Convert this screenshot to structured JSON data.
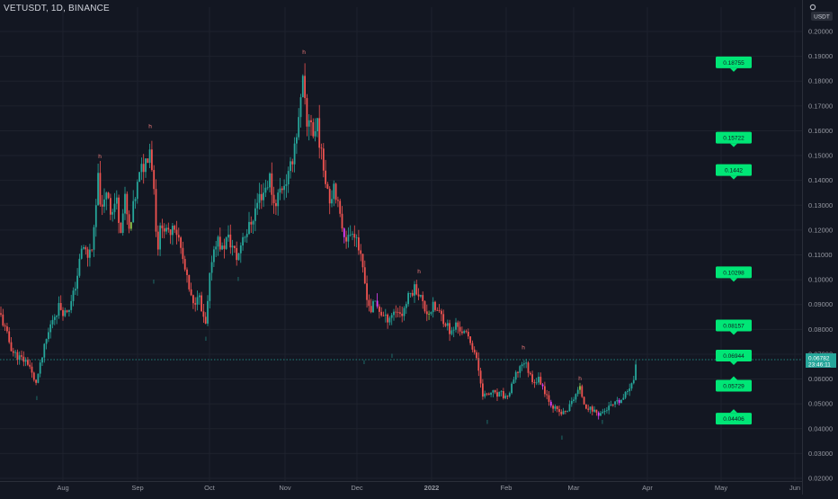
{
  "header": {
    "symbol_title": "VETUSDT, 1D, BINANCE",
    "currency_button": "USDT",
    "settings_icon": "gear-icon"
  },
  "colors": {
    "background": "#131722",
    "grid": "#1e222d",
    "up": "#26a69a",
    "down": "#ef5350",
    "up_highlight": "#8bc34a",
    "down_highlight": "#e040fb",
    "level_box": "#00e676",
    "axis_text": "#9598a1",
    "price_line": "#26a69a"
  },
  "last_price": {
    "value": "0.06782",
    "countdown": "23:46:11"
  },
  "chart_data": {
    "type": "candlestick",
    "title": "VETUSDT, 1D, BINANCE",
    "y_ticks": [
      "0.20000",
      "0.19000",
      "0.18000",
      "0.17000",
      "0.16000",
      "0.15000",
      "0.14000",
      "0.13000",
      "0.12000",
      "0.11000",
      "0.10000",
      "0.09000",
      "0.08000",
      "0.07000",
      "0.06000",
      "0.05000",
      "0.04000",
      "0.03000",
      "0.02000"
    ],
    "x_ticks": [
      "Aug",
      "Sep",
      "Oct",
      "Nov",
      "Dec",
      "2022",
      "Feb",
      "Mar",
      "Apr",
      "May",
      "Jun"
    ],
    "ylim": [
      0.0165,
      0.2035
    ],
    "grid": true,
    "series_path": [
      {
        "x": 0,
        "y": 0.0865
      },
      {
        "x": 6,
        "y": 0.0795
      },
      {
        "x": 14,
        "y": 0.071
      },
      {
        "x": 22,
        "y": 0.0685
      },
      {
        "x": 32,
        "y": 0.0665
      },
      {
        "x": 39,
        "y": 0.0575
      },
      {
        "x": 44,
        "y": 0.064
      },
      {
        "x": 50,
        "y": 0.0735
      },
      {
        "x": 58,
        "y": 0.084
      },
      {
        "x": 66,
        "y": 0.0895
      },
      {
        "x": 72,
        "y": 0.0865
      },
      {
        "x": 80,
        "y": 0.091
      },
      {
        "x": 86,
        "y": 0.102
      },
      {
        "x": 92,
        "y": 0.114
      },
      {
        "x": 98,
        "y": 0.109
      },
      {
        "x": 104,
        "y": 0.116
      },
      {
        "x": 109,
        "y": 0.14
      },
      {
        "x": 114,
        "y": 0.126
      },
      {
        "x": 119,
        "y": 0.138
      },
      {
        "x": 124,
        "y": 0.126
      },
      {
        "x": 129,
        "y": 0.133
      },
      {
        "x": 134,
        "y": 0.121
      },
      {
        "x": 139,
        "y": 0.132
      },
      {
        "x": 144,
        "y": 0.118
      },
      {
        "x": 150,
        "y": 0.133
      },
      {
        "x": 156,
        "y": 0.143
      },
      {
        "x": 162,
        "y": 0.148
      },
      {
        "x": 167,
        "y": 0.154
      },
      {
        "x": 171,
        "y": 0.138
      },
      {
        "x": 175,
        "y": 0.112
      },
      {
        "x": 180,
        "y": 0.124
      },
      {
        "x": 186,
        "y": 0.117
      },
      {
        "x": 193,
        "y": 0.124
      },
      {
        "x": 199,
        "y": 0.116
      },
      {
        "x": 205,
        "y": 0.105
      },
      {
        "x": 210,
        "y": 0.096
      },
      {
        "x": 215,
        "y": 0.089
      },
      {
        "x": 220,
        "y": 0.096
      },
      {
        "x": 225,
        "y": 0.085
      },
      {
        "x": 229,
        "y": 0.081
      },
      {
        "x": 235,
        "y": 0.108
      },
      {
        "x": 241,
        "y": 0.117
      },
      {
        "x": 247,
        "y": 0.112
      },
      {
        "x": 253,
        "y": 0.117
      },
      {
        "x": 259,
        "y": 0.113
      },
      {
        "x": 264,
        "y": 0.108
      },
      {
        "x": 270,
        "y": 0.118
      },
      {
        "x": 276,
        "y": 0.12
      },
      {
        "x": 282,
        "y": 0.126
      },
      {
        "x": 288,
        "y": 0.133
      },
      {
        "x": 294,
        "y": 0.136
      },
      {
        "x": 300,
        "y": 0.141
      },
      {
        "x": 305,
        "y": 0.13
      },
      {
        "x": 310,
        "y": 0.135
      },
      {
        "x": 316,
        "y": 0.139
      },
      {
        "x": 322,
        "y": 0.142
      },
      {
        "x": 328,
        "y": 0.156
      },
      {
        "x": 333,
        "y": 0.165
      },
      {
        "x": 337,
        "y": 0.18
      },
      {
        "x": 341,
        "y": 0.16
      },
      {
        "x": 345,
        "y": 0.168
      },
      {
        "x": 349,
        "y": 0.156
      },
      {
        "x": 353,
        "y": 0.165
      },
      {
        "x": 357,
        "y": 0.15
      },
      {
        "x": 362,
        "y": 0.142
      },
      {
        "x": 367,
        "y": 0.132
      },
      {
        "x": 372,
        "y": 0.14
      },
      {
        "x": 377,
        "y": 0.126
      },
      {
        "x": 382,
        "y": 0.12
      },
      {
        "x": 387,
        "y": 0.116
      },
      {
        "x": 392,
        "y": 0.121
      },
      {
        "x": 397,
        "y": 0.117
      },
      {
        "x": 402,
        "y": 0.106
      },
      {
        "x": 407,
        "y": 0.096
      },
      {
        "x": 412,
        "y": 0.087
      },
      {
        "x": 417,
        "y": 0.091
      },
      {
        "x": 423,
        "y": 0.087
      },
      {
        "x": 429,
        "y": 0.084
      },
      {
        "x": 435,
        "y": 0.086
      },
      {
        "x": 441,
        "y": 0.088
      },
      {
        "x": 447,
        "y": 0.086
      },
      {
        "x": 452,
        "y": 0.091
      },
      {
        "x": 457,
        "y": 0.095
      },
      {
        "x": 462,
        "y": 0.097
      },
      {
        "x": 467,
        "y": 0.094
      },
      {
        "x": 472,
        "y": 0.088
      },
      {
        "x": 477,
        "y": 0.087
      },
      {
        "x": 482,
        "y": 0.089
      },
      {
        "x": 487,
        "y": 0.087
      },
      {
        "x": 492,
        "y": 0.085
      },
      {
        "x": 497,
        "y": 0.082
      },
      {
        "x": 502,
        "y": 0.078
      },
      {
        "x": 507,
        "y": 0.082
      },
      {
        "x": 512,
        "y": 0.08
      },
      {
        "x": 517,
        "y": 0.078
      },
      {
        "x": 522,
        "y": 0.076
      },
      {
        "x": 527,
        "y": 0.072
      },
      {
        "x": 532,
        "y": 0.064
      },
      {
        "x": 537,
        "y": 0.054
      },
      {
        "x": 542,
        "y": 0.053
      },
      {
        "x": 547,
        "y": 0.055
      },
      {
        "x": 552,
        "y": 0.053
      },
      {
        "x": 557,
        "y": 0.054
      },
      {
        "x": 562,
        "y": 0.0525
      },
      {
        "x": 567,
        "y": 0.0545
      },
      {
        "x": 572,
        "y": 0.06
      },
      {
        "x": 577,
        "y": 0.064
      },
      {
        "x": 582,
        "y": 0.0675
      },
      {
        "x": 586,
        "y": 0.065
      },
      {
        "x": 590,
        "y": 0.061
      },
      {
        "x": 595,
        "y": 0.059
      },
      {
        "x": 600,
        "y": 0.06
      },
      {
        "x": 605,
        "y": 0.056
      },
      {
        "x": 610,
        "y": 0.052
      },
      {
        "x": 615,
        "y": 0.049
      },
      {
        "x": 620,
        "y": 0.047
      },
      {
        "x": 625,
        "y": 0.046
      },
      {
        "x": 630,
        "y": 0.047
      },
      {
        "x": 635,
        "y": 0.05
      },
      {
        "x": 640,
        "y": 0.054
      },
      {
        "x": 645,
        "y": 0.056
      },
      {
        "x": 650,
        "y": 0.05
      },
      {
        "x": 655,
        "y": 0.048
      },
      {
        "x": 660,
        "y": 0.0475
      },
      {
        "x": 665,
        "y": 0.046
      },
      {
        "x": 670,
        "y": 0.0465
      },
      {
        "x": 675,
        "y": 0.048
      },
      {
        "x": 680,
        "y": 0.049
      },
      {
        "x": 685,
        "y": 0.05
      },
      {
        "x": 690,
        "y": 0.051
      },
      {
        "x": 695,
        "y": 0.053
      },
      {
        "x": 700,
        "y": 0.057
      },
      {
        "x": 705,
        "y": 0.061
      },
      {
        "x": 708,
        "y": 0.06782
      }
    ],
    "h_markers": [
      {
        "x": 111,
        "y": 0.149
      },
      {
        "x": 167,
        "y": 0.161
      },
      {
        "x": 338,
        "y": 0.191
      },
      {
        "x": 466,
        "y": 0.1025
      },
      {
        "x": 582,
        "y": 0.072
      },
      {
        "x": 645,
        "y": 0.0595
      }
    ],
    "l_markers": [
      {
        "x": 41,
        "y": 0.0515
      },
      {
        "x": 171,
        "y": 0.0985
      },
      {
        "x": 229,
        "y": 0.0755
      },
      {
        "x": 265,
        "y": 0.0995
      },
      {
        "x": 405,
        "y": 0.066
      },
      {
        "x": 436,
        "y": 0.0685
      },
      {
        "x": 542,
        "y": 0.042
      },
      {
        "x": 625,
        "y": 0.0355
      },
      {
        "x": 670,
        "y": 0.042
      }
    ],
    "levels": [
      {
        "label": "0.18755",
        "value": 0.18755,
        "arrow": "down"
      },
      {
        "label": "0.15722",
        "value": 0.15722,
        "arrow": "down"
      },
      {
        "label": "0.1442",
        "value": 0.1442,
        "arrow": "down"
      },
      {
        "label": "0.10298",
        "value": 0.10298,
        "arrow": "down"
      },
      {
        "label": "0.08157",
        "value": 0.08157,
        "arrow": "down"
      },
      {
        "label": "0.06944",
        "value": 0.06944,
        "arrow": "down"
      },
      {
        "label": "0.05729",
        "value": 0.05729,
        "arrow": "up"
      },
      {
        "label": "0.04406",
        "value": 0.04406,
        "arrow": "up"
      }
    ]
  }
}
